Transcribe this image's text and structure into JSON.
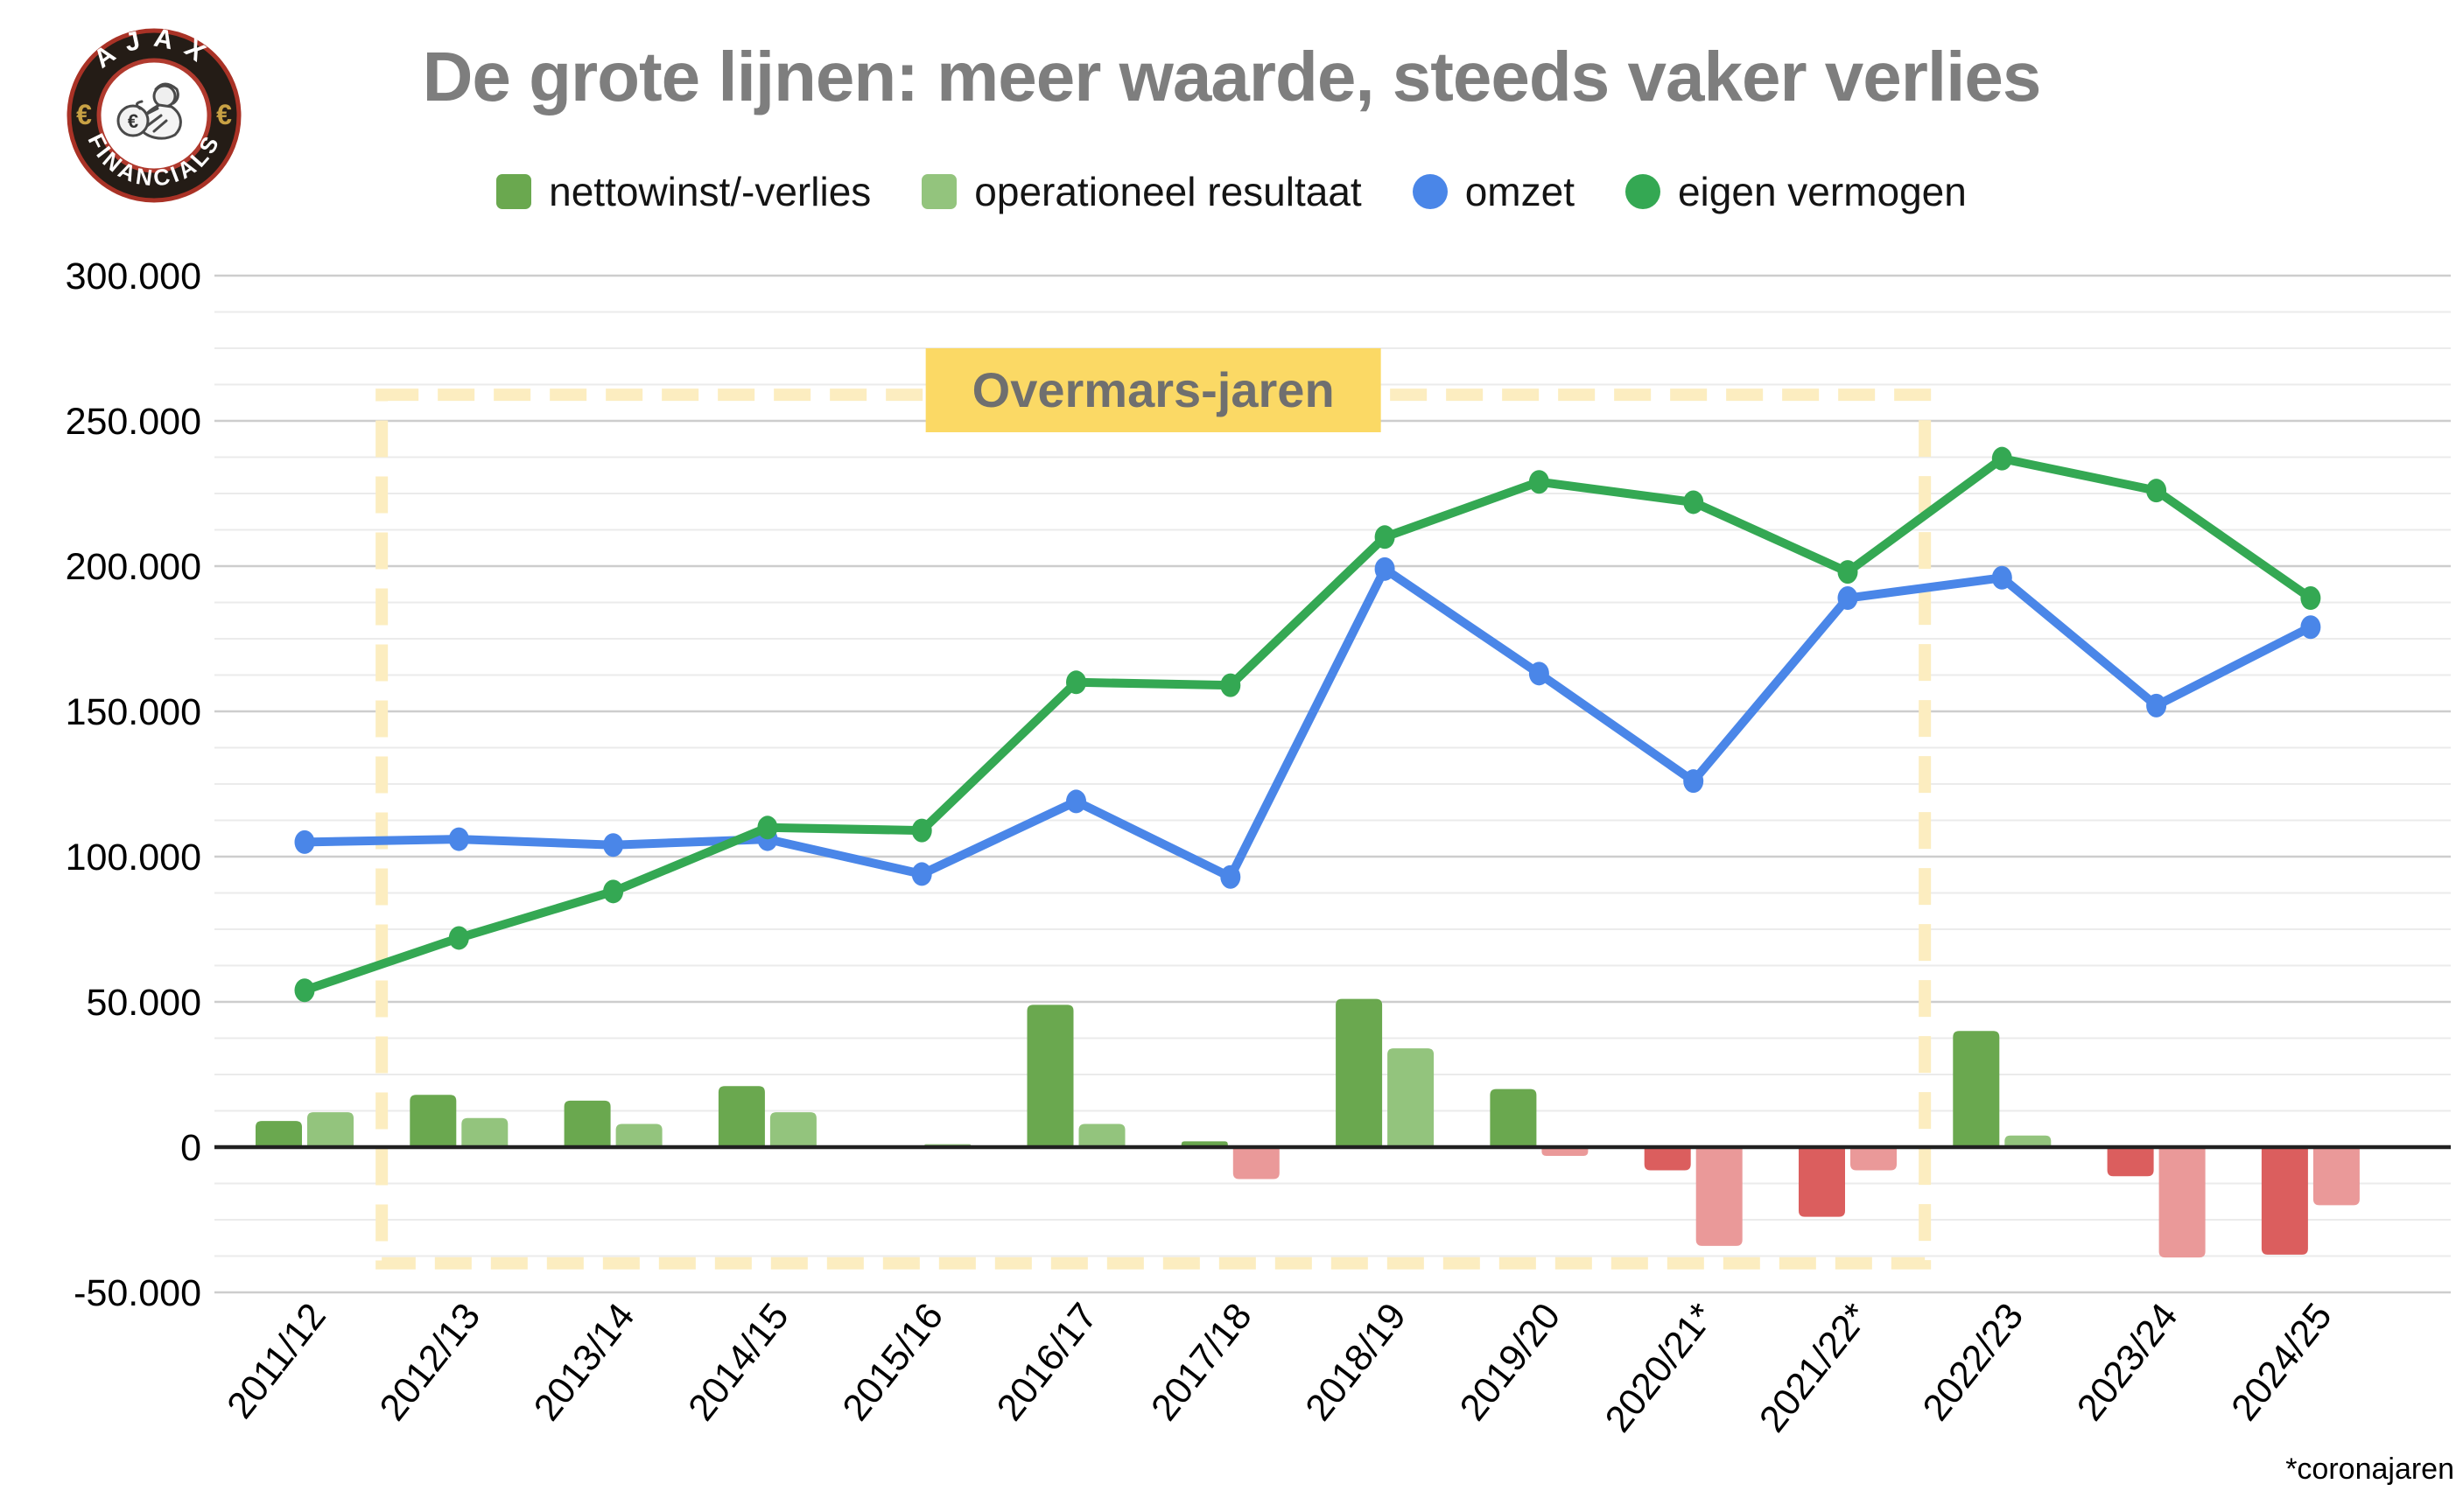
{
  "header": {
    "title": "De grote lijnen: meer waarde, steeds vaker verlies",
    "logo": {
      "top_text": "AJAX",
      "bottom_text": "FINANCIALS",
      "left_symbol": "€",
      "right_symbol": "€",
      "center_symbol": "€"
    }
  },
  "legend": [
    {
      "label": "nettowinst/-verlies",
      "marker": "square",
      "color": "#6aa84f"
    },
    {
      "label": "operationeel resultaat",
      "marker": "square",
      "color": "#93c47d"
    },
    {
      "label": "omzet",
      "marker": "circle",
      "color": "#4a86e8"
    },
    {
      "label": "eigen vermogen",
      "marker": "circle",
      "color": "#34a853"
    }
  ],
  "footnote": "*coronajaren",
  "theme": {
    "title_color": "#7e7e7e",
    "bar_positive_dark": "#6aa84f",
    "bar_positive_light": "#93c47d",
    "bar_negative_dark": "#db5e5e",
    "bar_negative_light": "#ea9999",
    "line_blue": "#4a86e8",
    "line_green": "#34a853",
    "gridline_minor": "#ebebeb",
    "gridline_major": "#cdcdcd",
    "zero_line": "#212121",
    "annotation_fill": "#fbd965",
    "annotation_text": "#6f6f6f",
    "annotation_dash": "#fcedc0",
    "logo_ring_dark": "#241c16",
    "logo_ring_red": "#a93226",
    "logo_gold": "#c8a144"
  },
  "chart_data": {
    "type": "combo (bar + line)",
    "title": "De grote lijnen: meer waarde, steeds vaker verlies",
    "xlabel": "",
    "ylabel": "",
    "ylim": [
      -50000,
      300000
    ],
    "y_major_step": 50000,
    "y_minor_step": 12500,
    "y_tick_labels": [
      "300.000",
      "250.000",
      "200.000",
      "150.000",
      "100.000",
      "50.000",
      "0",
      "-50.000"
    ],
    "grid": "horizontal, minor + major",
    "legend_position": "top",
    "categories": [
      "2011/12",
      "2012/13",
      "2013/14",
      "2014/15",
      "2015/16",
      "2016/17",
      "2017/18",
      "2018/19",
      "2019/20",
      "2020/21*",
      "2021/22*",
      "2022/23",
      "2023/24",
      "2024/25"
    ],
    "series": [
      {
        "name": "nettowinst/-verlies",
        "type": "bar",
        "values": [
          9000,
          18000,
          16000,
          21000,
          0,
          49000,
          2000,
          51000,
          20000,
          -8000,
          -24000,
          40000,
          -10000,
          -37000
        ]
      },
      {
        "name": "operationeel resultaat",
        "type": "bar",
        "values": [
          12000,
          10000,
          8000,
          12000,
          1000,
          8000,
          -11000,
          34000,
          -3000,
          -34000,
          -8000,
          4000,
          -38000,
          -20000
        ]
      },
      {
        "name": "omzet",
        "type": "line",
        "values": [
          105000,
          106000,
          104000,
          106000,
          94000,
          119000,
          93000,
          199000,
          163000,
          126000,
          189000,
          196000,
          152000,
          179000
        ]
      },
      {
        "name": "eigen vermogen",
        "type": "line",
        "values": [
          54000,
          72000,
          88000,
          110000,
          109000,
          160000,
          159000,
          210000,
          229000,
          222000,
          198000,
          237000,
          226000,
          189000
        ]
      }
    ],
    "annotation": {
      "label": "Overmars-jaren",
      "from_category": "2012/13",
      "to_category": "2021/22*",
      "from_index": 1,
      "to_index": 10,
      "top_value": 259000,
      "bottom_value": -40000
    }
  }
}
